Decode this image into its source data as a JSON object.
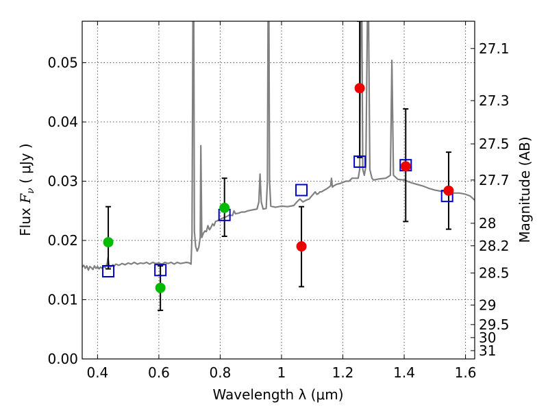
{
  "chart_data": {
    "type": "scatter",
    "xlabel": "Wavelength  λ (μm)",
    "ylabel_prefix": "Flux  ",
    "ylabel_symbol": "F",
    "ylabel_sub": "ν",
    "ylabel_suffix": "  ( μJy )",
    "y2label": "Magnitude (AB)",
    "xlim": [
      0.35,
      1.63
    ],
    "ylim": [
      0.0,
      0.057
    ],
    "grid": true,
    "x_ticks": [
      0.4,
      0.6,
      0.8,
      1.0,
      1.2,
      1.4,
      1.6
    ],
    "x_tick_labels": [
      "0.4",
      "0.6",
      "0.8",
      "1",
      "1.2",
      "1.4",
      "1.6"
    ],
    "y_ticks": [
      0.0,
      0.01,
      0.02,
      0.03,
      0.04,
      0.05
    ],
    "y_tick_labels": [
      "0.00",
      "0.01",
      "0.02",
      "0.03",
      "0.04",
      "0.05"
    ],
    "y2_ticks": [
      {
        "label": "27.1",
        "flux": 0.0524
      },
      {
        "label": "27.3",
        "flux": 0.0436
      },
      {
        "label": "27.5",
        "flux": 0.0363
      },
      {
        "label": "27.7",
        "flux": 0.0302
      },
      {
        "label": "28",
        "flux": 0.0229
      },
      {
        "label": "28.2",
        "flux": 0.0191
      },
      {
        "label": "28.5",
        "flux": 0.0145
      },
      {
        "label": "29",
        "flux": 0.0091
      },
      {
        "label": "29.5",
        "flux": 0.0058
      },
      {
        "label": "30",
        "flux": 0.0036
      },
      {
        "label": "31",
        "flux": 0.0014
      }
    ],
    "colors": {
      "model": "#808080",
      "green": "#00bb00",
      "red": "#ee0000",
      "box": "#0000cc",
      "errorbar": "#000000",
      "grid": "#555555"
    },
    "model_spectrum": [
      [
        0.35,
        0.0155
      ],
      [
        0.355,
        0.0158
      ],
      [
        0.36,
        0.0153
      ],
      [
        0.365,
        0.0157
      ],
      [
        0.37,
        0.015
      ],
      [
        0.375,
        0.0156
      ],
      [
        0.38,
        0.0154
      ],
      [
        0.385,
        0.0151
      ],
      [
        0.39,
        0.0157
      ],
      [
        0.395,
        0.0153
      ],
      [
        0.4,
        0.0156
      ],
      [
        0.405,
        0.0152
      ],
      [
        0.41,
        0.0155
      ],
      [
        0.415,
        0.0153
      ],
      [
        0.42,
        0.0156
      ],
      [
        0.425,
        0.0154
      ],
      [
        0.428,
        0.0157
      ],
      [
        0.431,
        0.016
      ],
      [
        0.434,
        0.0171
      ],
      [
        0.437,
        0.016
      ],
      [
        0.44,
        0.0155
      ],
      [
        0.445,
        0.0156
      ],
      [
        0.45,
        0.0159
      ],
      [
        0.455,
        0.0157
      ],
      [
        0.46,
        0.016
      ],
      [
        0.47,
        0.0158
      ],
      [
        0.48,
        0.0161
      ],
      [
        0.49,
        0.0159
      ],
      [
        0.5,
        0.0162
      ],
      [
        0.51,
        0.016
      ],
      [
        0.52,
        0.0163
      ],
      [
        0.53,
        0.016
      ],
      [
        0.54,
        0.0162
      ],
      [
        0.55,
        0.0161
      ],
      [
        0.56,
        0.0163
      ],
      [
        0.57,
        0.016
      ],
      [
        0.58,
        0.0163
      ],
      [
        0.59,
        0.0161
      ],
      [
        0.6,
        0.0162
      ],
      [
        0.61,
        0.016
      ],
      [
        0.62,
        0.0163
      ],
      [
        0.63,
        0.0161
      ],
      [
        0.64,
        0.0163
      ],
      [
        0.65,
        0.016
      ],
      [
        0.66,
        0.0163
      ],
      [
        0.67,
        0.0161
      ],
      [
        0.68,
        0.0162
      ],
      [
        0.69,
        0.0163
      ],
      [
        0.7,
        0.0162
      ],
      [
        0.705,
        0.016
      ],
      [
        0.708,
        0.021
      ],
      [
        0.711,
        0.057
      ],
      [
        0.714,
        0.057
      ],
      [
        0.716,
        0.0215
      ],
      [
        0.72,
        0.019
      ],
      [
        0.725,
        0.0182
      ],
      [
        0.73,
        0.0188
      ],
      [
        0.735,
        0.0205
      ],
      [
        0.737,
        0.036
      ],
      [
        0.74,
        0.0205
      ],
      [
        0.745,
        0.0212
      ],
      [
        0.75,
        0.0216
      ],
      [
        0.755,
        0.0215
      ],
      [
        0.76,
        0.0225
      ],
      [
        0.765,
        0.0218
      ],
      [
        0.77,
        0.0222
      ],
      [
        0.775,
        0.0228
      ],
      [
        0.78,
        0.0225
      ],
      [
        0.785,
        0.0232
      ],
      [
        0.79,
        0.0233
      ],
      [
        0.8,
        0.0236
      ],
      [
        0.81,
        0.0238
      ],
      [
        0.82,
        0.024
      ],
      [
        0.83,
        0.0243
      ],
      [
        0.84,
        0.0242
      ],
      [
        0.845,
        0.025
      ],
      [
        0.85,
        0.0245
      ],
      [
        0.86,
        0.0246
      ],
      [
        0.87,
        0.0248
      ],
      [
        0.88,
        0.0248
      ],
      [
        0.89,
        0.025
      ],
      [
        0.9,
        0.0251
      ],
      [
        0.91,
        0.0252
      ],
      [
        0.92,
        0.0253
      ],
      [
        0.926,
        0.0265
      ],
      [
        0.93,
        0.0312
      ],
      [
        0.934,
        0.0265
      ],
      [
        0.94,
        0.0253
      ],
      [
        0.95,
        0.0254
      ],
      [
        0.954,
        0.03
      ],
      [
        0.956,
        0.057
      ],
      [
        0.959,
        0.057
      ],
      [
        0.961,
        0.03
      ],
      [
        0.965,
        0.0258
      ],
      [
        0.98,
        0.0256
      ],
      [
        1.0,
        0.0258
      ],
      [
        1.02,
        0.0257
      ],
      [
        1.04,
        0.0259
      ],
      [
        1.05,
        0.0265
      ],
      [
        1.06,
        0.027
      ],
      [
        1.07,
        0.0265
      ],
      [
        1.08,
        0.0268
      ],
      [
        1.09,
        0.027
      ],
      [
        1.1,
        0.0276
      ],
      [
        1.11,
        0.0282
      ],
      [
        1.115,
        0.0278
      ],
      [
        1.12,
        0.0279
      ],
      [
        1.125,
        0.0282
      ],
      [
        1.13,
        0.0282
      ],
      [
        1.14,
        0.0285
      ],
      [
        1.15,
        0.0288
      ],
      [
        1.16,
        0.0292
      ],
      [
        1.163,
        0.0305
      ],
      [
        1.166,
        0.029
      ],
      [
        1.17,
        0.0292
      ],
      [
        1.18,
        0.0295
      ],
      [
        1.19,
        0.0296
      ],
      [
        1.2,
        0.0298
      ],
      [
        1.21,
        0.03
      ],
      [
        1.22,
        0.03
      ],
      [
        1.23,
        0.0305
      ],
      [
        1.24,
        0.0305
      ],
      [
        1.25,
        0.0305
      ],
      [
        1.255,
        0.032
      ],
      [
        1.258,
        0.057
      ],
      [
        1.262,
        0.057
      ],
      [
        1.265,
        0.032
      ],
      [
        1.27,
        0.031
      ],
      [
        1.275,
        0.0325
      ],
      [
        1.28,
        0.057
      ],
      [
        1.284,
        0.057
      ],
      [
        1.288,
        0.032
      ],
      [
        1.295,
        0.0305
      ],
      [
        1.3,
        0.0302
      ],
      [
        1.32,
        0.0304
      ],
      [
        1.34,
        0.0305
      ],
      [
        1.355,
        0.031
      ],
      [
        1.36,
        0.0504
      ],
      [
        1.365,
        0.031
      ],
      [
        1.38,
        0.0303
      ],
      [
        1.4,
        0.0302
      ],
      [
        1.42,
        0.0298
      ],
      [
        1.44,
        0.0295
      ],
      [
        1.46,
        0.0292
      ],
      [
        1.48,
        0.0288
      ],
      [
        1.5,
        0.0285
      ],
      [
        1.52,
        0.0283
      ],
      [
        1.54,
        0.0282
      ],
      [
        1.56,
        0.028
      ],
      [
        1.58,
        0.028
      ],
      [
        1.6,
        0.0278
      ],
      [
        1.615,
        0.0275
      ],
      [
        1.63,
        0.0268
      ]
    ],
    "box_points": [
      {
        "x": 0.435,
        "y": 0.0148
      },
      {
        "x": 0.605,
        "y": 0.015
      },
      {
        "x": 0.814,
        "y": 0.0243
      },
      {
        "x": 1.065,
        "y": 0.0285
      },
      {
        "x": 1.255,
        "y": 0.0333
      },
      {
        "x": 1.405,
        "y": 0.0327
      },
      {
        "x": 1.54,
        "y": 0.0275
      }
    ],
    "green_points": [
      {
        "x": 0.435,
        "y": 0.0197,
        "ylo": 0.0152,
        "yhi": 0.0257
      },
      {
        "x": 0.605,
        "y": 0.012,
        "ylo": 0.0082,
        "yhi": 0.0157
      },
      {
        "x": 0.814,
        "y": 0.0255,
        "ylo": 0.0207,
        "yhi": 0.0305
      }
    ],
    "red_points": [
      {
        "x": 1.065,
        "y": 0.019,
        "ylo": 0.0122,
        "yhi": 0.0257
      },
      {
        "x": 1.255,
        "y": 0.0457,
        "ylo": 0.034,
        "yhi": 0.057
      },
      {
        "x": 1.405,
        "y": 0.0325,
        "ylo": 0.0232,
        "yhi": 0.0422
      },
      {
        "x": 1.545,
        "y": 0.0284,
        "ylo": 0.0219,
        "yhi": 0.0349
      }
    ]
  }
}
